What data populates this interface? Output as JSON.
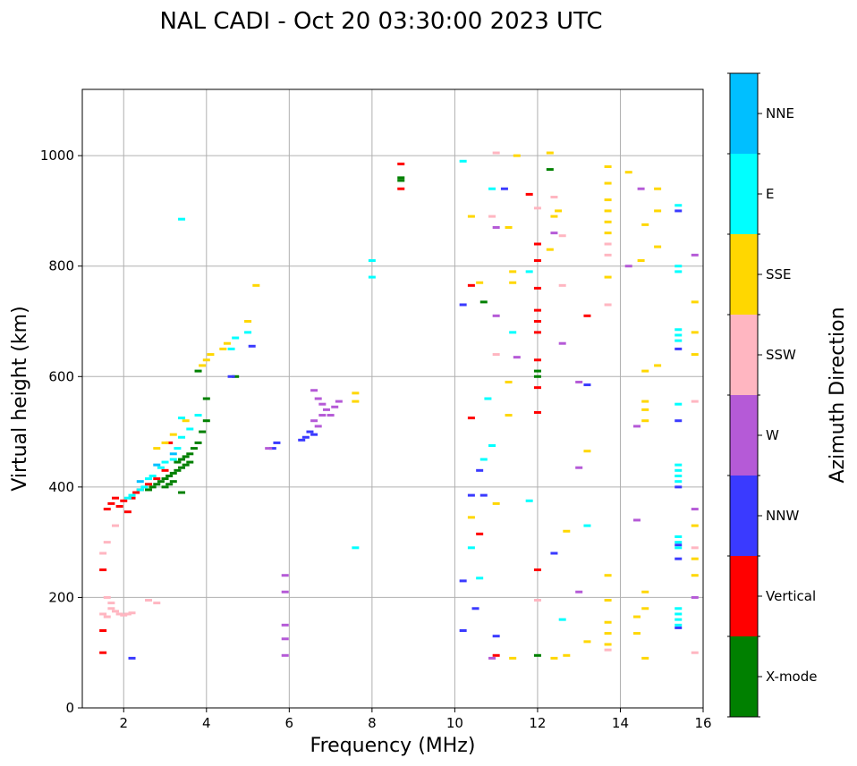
{
  "chart_data": {
    "type": "scatter",
    "title": "NAL CADI - Oct 20 03:30:00 2023 UTC",
    "xlabel": "Frequency (MHz)",
    "ylabel": "Virtual height (km)",
    "xlim": [
      1,
      16
    ],
    "ylim": [
      0,
      1120
    ],
    "xticks": [
      2,
      4,
      6,
      8,
      10,
      12,
      14,
      16
    ],
    "yticks": [
      0,
      200,
      400,
      600,
      800,
      1000
    ],
    "grid": true,
    "colorbar": {
      "label": "Azimuth Direction",
      "categories": [
        "X-mode",
        "Vertical",
        "NNW",
        "W",
        "SSW",
        "SSE",
        "E",
        "NNE"
      ],
      "colors": [
        "#008000",
        "#ff0000",
        "#3a3aff",
        "#b55ad7",
        "#ffb6c1",
        "#ffd700",
        "#00ffff",
        "#00bfff"
      ]
    },
    "series": [
      {
        "name": "X-mode",
        "points": [
          [
            2.8,
            405
          ],
          [
            2.9,
            410
          ],
          [
            3.0,
            415
          ],
          [
            3.1,
            420
          ],
          [
            3.2,
            425
          ],
          [
            3.3,
            430
          ],
          [
            3.4,
            435
          ],
          [
            3.5,
            440
          ],
          [
            3.6,
            445
          ],
          [
            3.5,
            455
          ],
          [
            3.4,
            450
          ],
          [
            3.3,
            445
          ],
          [
            3.0,
            400
          ],
          [
            3.1,
            405
          ],
          [
            3.2,
            410
          ],
          [
            3.6,
            460
          ],
          [
            3.7,
            470
          ],
          [
            3.8,
            480
          ],
          [
            3.9,
            500
          ],
          [
            4.0,
            520
          ],
          [
            4.0,
            560
          ],
          [
            3.8,
            610
          ],
          [
            4.7,
            600
          ],
          [
            3.4,
            390
          ],
          [
            2.6,
            395
          ],
          [
            2.7,
            400
          ],
          [
            8.7,
            960
          ],
          [
            8.7,
            955
          ],
          [
            12.0,
            610
          ],
          [
            12.0,
            600
          ],
          [
            12.3,
            975
          ],
          [
            10.7,
            735
          ],
          [
            12.0,
            95
          ]
        ]
      },
      {
        "name": "Vertical",
        "points": [
          [
            1.6,
            360
          ],
          [
            1.7,
            370
          ],
          [
            1.8,
            380
          ],
          [
            1.9,
            365
          ],
          [
            2.0,
            375
          ],
          [
            2.1,
            355
          ],
          [
            2.2,
            380
          ],
          [
            2.4,
            395
          ],
          [
            2.6,
            405
          ],
          [
            2.8,
            415
          ],
          [
            3.0,
            430
          ],
          [
            3.1,
            480
          ],
          [
            2.3,
            390
          ],
          [
            1.5,
            250
          ],
          [
            1.5,
            140
          ],
          [
            1.5,
            100
          ],
          [
            8.7,
            940
          ],
          [
            8.7,
            985
          ],
          [
            10.4,
            765
          ],
          [
            10.6,
            315
          ],
          [
            10.4,
            525
          ],
          [
            11.8,
            930
          ],
          [
            12.0,
            840
          ],
          [
            12.0,
            810
          ],
          [
            12.0,
            760
          ],
          [
            12.0,
            720
          ],
          [
            12.0,
            700
          ],
          [
            12.0,
            680
          ],
          [
            12.0,
            630
          ],
          [
            12.0,
            580
          ],
          [
            12.0,
            535
          ],
          [
            13.2,
            710
          ],
          [
            12.0,
            250
          ],
          [
            11.0,
            95
          ]
        ]
      },
      {
        "name": "NNW",
        "points": [
          [
            6.5,
            500
          ],
          [
            6.6,
            495
          ],
          [
            6.4,
            490
          ],
          [
            5.7,
            480
          ],
          [
            5.6,
            470
          ],
          [
            6.3,
            485
          ],
          [
            10.2,
            730
          ],
          [
            10.6,
            430
          ],
          [
            10.4,
            385
          ],
          [
            10.2,
            230
          ],
          [
            10.2,
            140
          ],
          [
            10.5,
            180
          ],
          [
            11.0,
            130
          ],
          [
            11.2,
            940
          ],
          [
            12.4,
            280
          ],
          [
            13.2,
            585
          ],
          [
            15.4,
            900
          ],
          [
            15.4,
            650
          ],
          [
            15.4,
            520
          ],
          [
            15.4,
            400
          ],
          [
            15.4,
            295
          ],
          [
            15.4,
            270
          ],
          [
            15.4,
            145
          ],
          [
            5.1,
            655
          ],
          [
            4.6,
            600
          ],
          [
            2.2,
            90
          ],
          [
            10.7,
            385
          ]
        ]
      },
      {
        "name": "W",
        "points": [
          [
            6.6,
            575
          ],
          [
            6.7,
            560
          ],
          [
            6.8,
            550
          ],
          [
            6.9,
            540
          ],
          [
            7.0,
            530
          ],
          [
            7.1,
            545
          ],
          [
            7.2,
            555
          ],
          [
            6.6,
            520
          ],
          [
            6.7,
            510
          ],
          [
            6.8,
            530
          ],
          [
            5.9,
            240
          ],
          [
            5.9,
            210
          ],
          [
            5.9,
            150
          ],
          [
            5.9,
            125
          ],
          [
            5.9,
            95
          ],
          [
            5.5,
            470
          ],
          [
            11.0,
            870
          ],
          [
            11.0,
            710
          ],
          [
            11.5,
            635
          ],
          [
            12.4,
            860
          ],
          [
            12.6,
            660
          ],
          [
            13.0,
            590
          ],
          [
            13.0,
            435
          ],
          [
            13.0,
            210
          ],
          [
            14.2,
            800
          ],
          [
            14.5,
            940
          ],
          [
            14.4,
            340
          ],
          [
            14.4,
            510
          ],
          [
            15.8,
            820
          ],
          [
            15.8,
            360
          ],
          [
            15.8,
            200
          ],
          [
            10.9,
            90
          ]
        ]
      },
      {
        "name": "SSW",
        "points": [
          [
            1.5,
            170
          ],
          [
            1.6,
            165
          ],
          [
            1.7,
            180
          ],
          [
            1.8,
            175
          ],
          [
            1.9,
            170
          ],
          [
            2.0,
            168
          ],
          [
            2.1,
            170
          ],
          [
            2.2,
            172
          ],
          [
            1.5,
            280
          ],
          [
            1.6,
            300
          ],
          [
            1.8,
            330
          ],
          [
            1.6,
            200
          ],
          [
            1.7,
            190
          ],
          [
            2.6,
            195
          ],
          [
            2.8,
            190
          ],
          [
            10.9,
            890
          ],
          [
            11.0,
            1005
          ],
          [
            11.0,
            640
          ],
          [
            12.0,
            905
          ],
          [
            12.4,
            925
          ],
          [
            12.6,
            855
          ],
          [
            12.6,
            765
          ],
          [
            13.7,
            840
          ],
          [
            13.7,
            820
          ],
          [
            13.7,
            730
          ],
          [
            13.7,
            105
          ],
          [
            15.8,
            555
          ],
          [
            15.8,
            290
          ],
          [
            15.8,
            100
          ],
          [
            12.0,
            195
          ]
        ]
      },
      {
        "name": "SSE",
        "points": [
          [
            3.9,
            620
          ],
          [
            4.0,
            630
          ],
          [
            4.1,
            640
          ],
          [
            4.4,
            650
          ],
          [
            4.5,
            660
          ],
          [
            5.0,
            700
          ],
          [
            5.2,
            765
          ],
          [
            7.6,
            570
          ],
          [
            7.6,
            555
          ],
          [
            2.8,
            470
          ],
          [
            3.0,
            480
          ],
          [
            3.2,
            495
          ],
          [
            3.5,
            520
          ],
          [
            10.4,
            890
          ],
          [
            10.6,
            770
          ],
          [
            11.3,
            870
          ],
          [
            11.4,
            790
          ],
          [
            11.4,
            770
          ],
          [
            11.3,
            590
          ],
          [
            11.3,
            530
          ],
          [
            11.0,
            370
          ],
          [
            11.4,
            90
          ],
          [
            12.3,
            1005
          ],
          [
            12.4,
            890
          ],
          [
            12.5,
            900
          ],
          [
            12.3,
            830
          ],
          [
            13.7,
            980
          ],
          [
            13.7,
            950
          ],
          [
            13.7,
            920
          ],
          [
            13.7,
            900
          ],
          [
            13.7,
            880
          ],
          [
            13.7,
            860
          ],
          [
            13.7,
            780
          ],
          [
            13.7,
            240
          ],
          [
            13.7,
            195
          ],
          [
            13.7,
            155
          ],
          [
            13.7,
            135
          ],
          [
            13.7,
            115
          ],
          [
            14.2,
            970
          ],
          [
            14.5,
            810
          ],
          [
            14.6,
            875
          ],
          [
            14.6,
            610
          ],
          [
            14.6,
            555
          ],
          [
            14.6,
            540
          ],
          [
            14.6,
            520
          ],
          [
            14.6,
            210
          ],
          [
            14.6,
            180
          ],
          [
            14.4,
            165
          ],
          [
            14.4,
            135
          ],
          [
            14.6,
            90
          ],
          [
            14.9,
            940
          ],
          [
            14.9,
            900
          ],
          [
            14.9,
            835
          ],
          [
            14.9,
            620
          ],
          [
            15.8,
            735
          ],
          [
            15.8,
            680
          ],
          [
            15.8,
            640
          ],
          [
            15.8,
            330
          ],
          [
            15.8,
            270
          ],
          [
            15.8,
            240
          ],
          [
            12.7,
            320
          ],
          [
            12.4,
            90
          ],
          [
            12.7,
            95
          ],
          [
            13.2,
            465
          ],
          [
            13.2,
            120
          ],
          [
            11.5,
            1000
          ],
          [
            10.4,
            345
          ]
        ]
      },
      {
        "name": "E",
        "points": [
          [
            2.1,
            380
          ],
          [
            2.2,
            385
          ],
          [
            2.4,
            395
          ],
          [
            2.5,
            400
          ],
          [
            2.6,
            415
          ],
          [
            2.7,
            420
          ],
          [
            2.9,
            435
          ],
          [
            3.0,
            445
          ],
          [
            3.2,
            450
          ],
          [
            3.3,
            470
          ],
          [
            3.4,
            490
          ],
          [
            3.6,
            505
          ],
          [
            3.8,
            530
          ],
          [
            4.6,
            650
          ],
          [
            4.7,
            670
          ],
          [
            3.4,
            885
          ],
          [
            8.0,
            780
          ],
          [
            8.0,
            810
          ],
          [
            7.6,
            290
          ],
          [
            10.2,
            990
          ],
          [
            10.9,
            940
          ],
          [
            10.8,
            560
          ],
          [
            10.9,
            475
          ],
          [
            11.4,
            680
          ],
          [
            11.8,
            790
          ],
          [
            11.8,
            375
          ],
          [
            12.6,
            160
          ],
          [
            13.2,
            330
          ],
          [
            10.7,
            450
          ],
          [
            10.6,
            235
          ],
          [
            10.4,
            290
          ],
          [
            15.4,
            910
          ],
          [
            15.4,
            800
          ],
          [
            15.4,
            790
          ],
          [
            15.4,
            685
          ],
          [
            15.4,
            675
          ],
          [
            15.4,
            665
          ],
          [
            15.4,
            550
          ],
          [
            15.4,
            440
          ],
          [
            15.4,
            430
          ],
          [
            15.4,
            420
          ],
          [
            15.4,
            410
          ],
          [
            15.4,
            310
          ],
          [
            15.4,
            300
          ],
          [
            15.4,
            290
          ],
          [
            15.4,
            180
          ],
          [
            15.4,
            170
          ],
          [
            15.4,
            160
          ],
          [
            15.4,
            150
          ],
          [
            5.0,
            680
          ],
          [
            3.4,
            525
          ]
        ]
      },
      {
        "name": "NNE",
        "points": [
          [
            2.4,
            410
          ],
          [
            2.8,
            440
          ],
          [
            3.2,
            460
          ]
        ]
      }
    ]
  }
}
